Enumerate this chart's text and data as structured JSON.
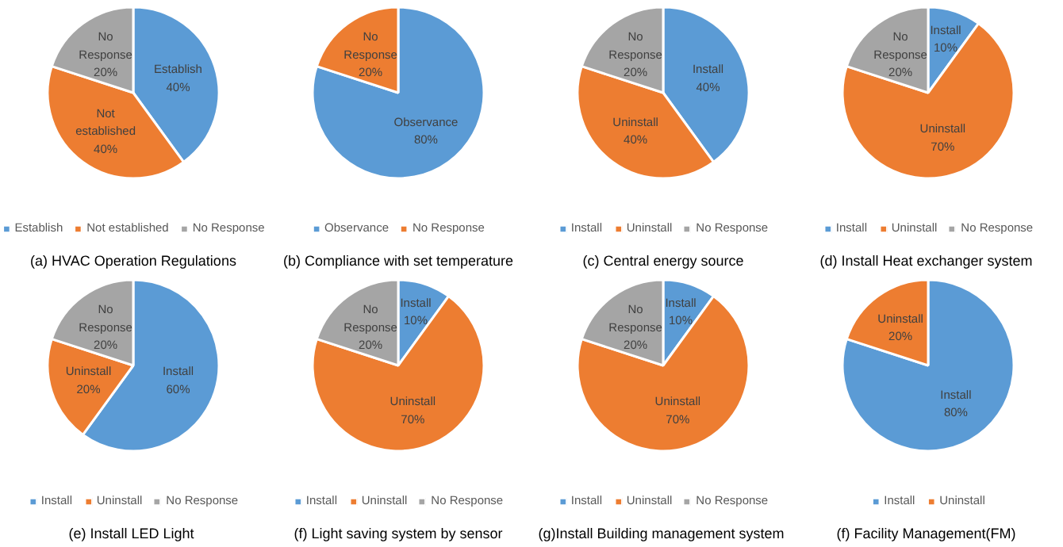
{
  "chart_data": [
    {
      "type": "pie",
      "title": "(a) HVAC Operation Regulations",
      "categories": [
        "Establish",
        "Not established",
        "No Response"
      ],
      "values": [
        40,
        40,
        20
      ],
      "colors": [
        "#5b9bd5",
        "#ed7d31",
        "#a5a5a5"
      ],
      "value_labels": [
        "40%",
        "40%",
        "20%"
      ],
      "legend": "bottom"
    },
    {
      "type": "pie",
      "title": "(b) Compliance with set temperature",
      "categories": [
        "Observance",
        "No Response"
      ],
      "values": [
        80,
        20
      ],
      "colors": [
        "#5b9bd5",
        "#ed7d31"
      ],
      "value_labels": [
        "80%",
        "20%"
      ],
      "legend": "bottom"
    },
    {
      "type": "pie",
      "title": "(c) Central energy source",
      "categories": [
        "Install",
        "Uninstall",
        "No Response"
      ],
      "values": [
        40,
        40,
        20
      ],
      "colors": [
        "#5b9bd5",
        "#ed7d31",
        "#a5a5a5"
      ],
      "value_labels": [
        "40%",
        "40%",
        "20%"
      ],
      "legend": "bottom"
    },
    {
      "type": "pie",
      "title": "(d) Install  Heat exchanger system",
      "categories": [
        "Install",
        "Uninstall",
        "No Response"
      ],
      "values": [
        10,
        70,
        20
      ],
      "colors": [
        "#5b9bd5",
        "#ed7d31",
        "#a5a5a5"
      ],
      "value_labels": [
        "10%",
        "70%",
        "20%"
      ],
      "legend": "bottom"
    },
    {
      "type": "pie",
      "title": "(e) Install  LED Light",
      "categories": [
        "Install",
        "Uninstall",
        "No Response"
      ],
      "values": [
        60,
        20,
        20
      ],
      "colors": [
        "#5b9bd5",
        "#ed7d31",
        "#a5a5a5"
      ],
      "value_labels": [
        "60%",
        "20%",
        "20%"
      ],
      "legend": "bottom"
    },
    {
      "type": "pie",
      "title": "(f) Light saving system by sensor",
      "categories": [
        "Install",
        "Uninstall",
        "No Response"
      ],
      "values": [
        10,
        70,
        20
      ],
      "colors": [
        "#5b9bd5",
        "#ed7d31",
        "#a5a5a5"
      ],
      "value_labels": [
        "10%",
        "70%",
        "20%"
      ],
      "legend": "bottom"
    },
    {
      "type": "pie",
      "title": "(g)Install  Building management system",
      "categories": [
        "Install",
        "Uninstall",
        "No Response"
      ],
      "values": [
        10,
        70,
        20
      ],
      "colors": [
        "#5b9bd5",
        "#ed7d31",
        "#a5a5a5"
      ],
      "value_labels": [
        "10%",
        "70%",
        "20%"
      ],
      "legend": "bottom"
    },
    {
      "type": "pie",
      "title": "(f)  Facility Management(FM)",
      "categories": [
        "Install",
        "Uninstall"
      ],
      "values": [
        80,
        20
      ],
      "colors": [
        "#5b9bd5",
        "#ed7d31"
      ],
      "value_labels": [
        "80%",
        "20%"
      ],
      "legend": "bottom"
    }
  ]
}
